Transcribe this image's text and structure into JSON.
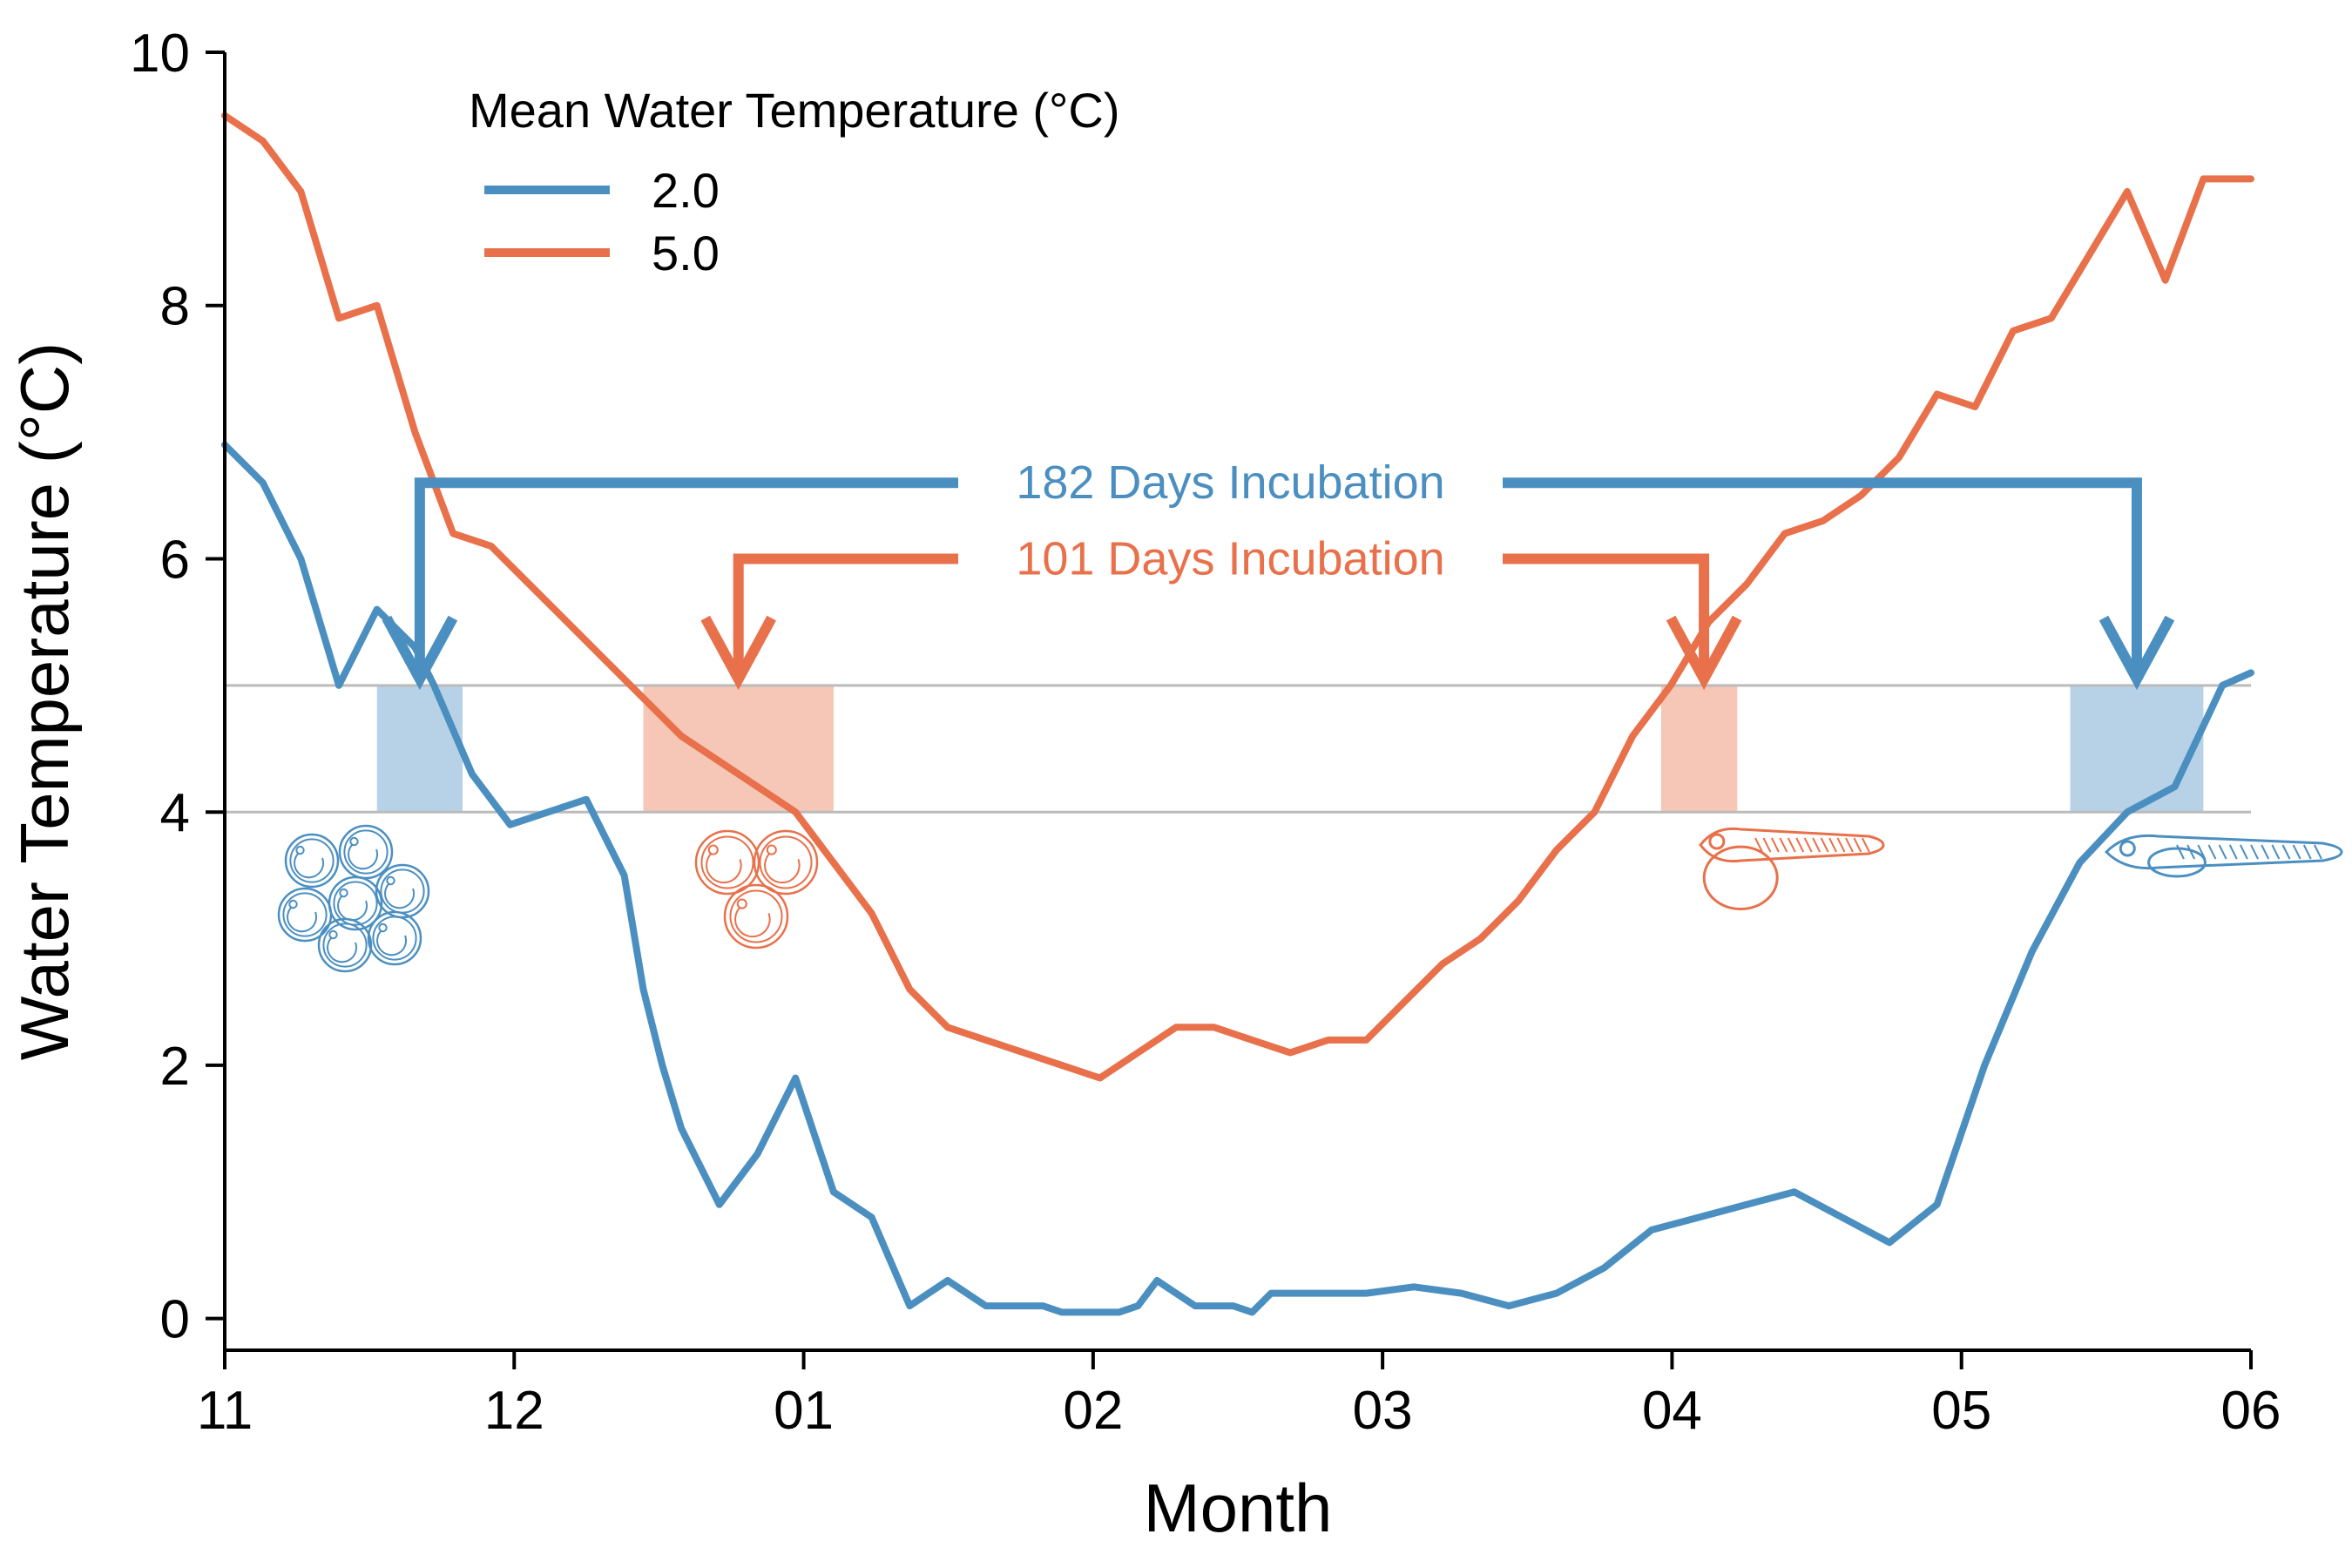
{
  "chart_data": {
    "type": "line",
    "xlabel": "Month",
    "ylabel": "Water Temperature (°C)",
    "x_tick_labels": [
      "11",
      "12",
      "01",
      "02",
      "03",
      "04",
      "05",
      "06"
    ],
    "xlim": [
      0,
      213
    ],
    "ylim": [
      -0.25,
      10
    ],
    "y_ticks": [
      0,
      2,
      4,
      6,
      8,
      10
    ],
    "y_tick_labels": [
      "0",
      "2",
      "4",
      "6",
      "8",
      "10"
    ],
    "grid": false,
    "legend": {
      "title": "Mean Water Temperature (°C)",
      "placement": "top-left",
      "entries": [
        "2.0",
        "5.0"
      ]
    },
    "colors": {
      "series_2": "#4b8fc1",
      "series_5": "#e8714b",
      "reference_lines": "#bbbbbb"
    },
    "reference_lines": [
      4,
      5
    ],
    "series": [
      {
        "name": "2.0",
        "x": [
          0,
          4,
          8,
          12,
          16,
          20,
          22,
          26,
          30,
          34,
          38,
          42,
          44,
          46,
          48,
          52,
          56,
          60,
          64,
          68,
          72,
          76,
          80,
          82,
          84,
          86,
          88,
          90,
          92,
          94,
          96,
          98,
          100,
          102,
          104,
          106,
          108,
          110,
          115,
          120,
          125,
          130,
          135,
          140,
          145,
          150,
          155,
          160,
          165,
          170,
          175,
          180,
          185,
          190,
          195,
          200,
          205,
          210,
          213
        ],
        "y": [
          6.9,
          6.6,
          6.0,
          5.0,
          5.6,
          5.3,
          5.0,
          4.3,
          3.9,
          4.0,
          4.1,
          3.5,
          2.6,
          2.0,
          1.5,
          0.9,
          1.3,
          1.9,
          1.0,
          0.8,
          0.1,
          0.3,
          0.1,
          0.1,
          0.1,
          0.1,
          0.05,
          0.05,
          0.05,
          0.05,
          0.1,
          0.3,
          0.2,
          0.1,
          0.1,
          0.1,
          0.05,
          0.2,
          0.2,
          0.2,
          0.25,
          0.2,
          0.1,
          0.2,
          0.4,
          0.7,
          0.8,
          0.9,
          1.0,
          0.8,
          0.6,
          0.9,
          2.0,
          2.9,
          3.6,
          4.0,
          4.2,
          5.0,
          5.1
        ]
      },
      {
        "name": "5.0",
        "x": [
          0,
          4,
          8,
          12,
          16,
          20,
          24,
          28,
          32,
          36,
          40,
          44,
          48,
          52,
          56,
          60,
          64,
          68,
          72,
          76,
          80,
          84,
          88,
          92,
          96,
          100,
          104,
          108,
          112,
          116,
          120,
          124,
          128,
          132,
          136,
          140,
          144,
          148,
          152,
          156,
          160,
          164,
          168,
          172,
          176,
          180,
          184,
          188,
          192,
          196,
          200,
          204,
          208,
          213
        ],
        "y": [
          9.5,
          9.3,
          8.9,
          7.9,
          8.0,
          7.0,
          6.2,
          6.1,
          5.8,
          5.5,
          5.2,
          4.9,
          4.6,
          4.4,
          4.2,
          4.0,
          3.6,
          3.2,
          2.6,
          2.3,
          2.2,
          2.1,
          2.0,
          1.9,
          2.1,
          2.3,
          2.3,
          2.2,
          2.1,
          2.2,
          2.2,
          2.5,
          2.8,
          3.0,
          3.3,
          3.7,
          4.0,
          4.6,
          5.0,
          5.5,
          5.8,
          6.2,
          6.3,
          6.5,
          6.8,
          7.3,
          7.2,
          7.8,
          7.9,
          8.4,
          8.9,
          8.2,
          9.0,
          9.0
        ]
      }
    ],
    "bands": [
      {
        "series": "2.0",
        "x0": 16,
        "x1": 25,
        "y0": 4,
        "y1": 5
      },
      {
        "series": "5.0",
        "x0": 44,
        "x1": 64,
        "y0": 4,
        "y1": 5
      },
      {
        "series": "5.0",
        "x0": 151,
        "x1": 159,
        "y0": 4,
        "y1": 5
      },
      {
        "series": "2.0",
        "x0": 194,
        "x1": 208,
        "y0": 4,
        "y1": 5
      }
    ],
    "annotations": [
      {
        "text": "182 Days Incubation",
        "series": "2.0",
        "x_start": 20.5,
        "x_end": 201,
        "y_bracket": 6.6
      },
      {
        "text": "101 Days Incubation",
        "series": "5.0",
        "x_start": 54,
        "x_end": 155.5,
        "y_bracket": 6.0
      }
    ],
    "icons": [
      {
        "name": "eggs-cluster-icon",
        "series": "2.0"
      },
      {
        "name": "eggs-small-cluster-icon",
        "series": "5.0"
      },
      {
        "name": "larva-yolk-sac-icon",
        "series": "5.0"
      },
      {
        "name": "larva-icon",
        "series": "2.0"
      }
    ]
  }
}
